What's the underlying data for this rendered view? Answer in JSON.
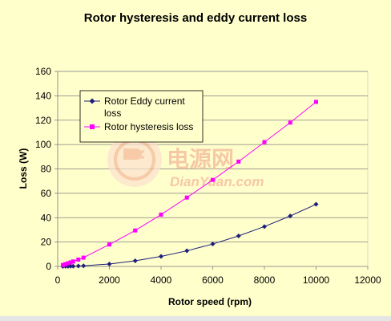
{
  "chart_data": {
    "type": "line",
    "title": "Rotor hysteresis and eddy current loss",
    "xlabel": "Rotor speed (rpm)",
    "ylabel": "Loss (W)",
    "xlim": [
      0,
      12000
    ],
    "ylim": [
      0,
      160
    ],
    "x_ticks": [
      "0",
      "2000",
      "4000",
      "6000",
      "8000",
      "10000",
      "12000"
    ],
    "y_ticks": [
      "0",
      "20",
      "40",
      "60",
      "80",
      "100",
      "120",
      "140",
      "160"
    ],
    "grid": "horizontal",
    "legend_position": "top-left",
    "series": [
      {
        "name": "Rotor Eddy current loss",
        "color": "#1f1f7a",
        "marker": "diamond",
        "x": [
          200,
          300,
          400,
          500,
          600,
          800,
          1000,
          2000,
          3000,
          4000,
          5000,
          6000,
          7000,
          8000,
          9000,
          10000
        ],
        "y": [
          0.02,
          0.05,
          0.08,
          0.13,
          0.18,
          0.33,
          0.5,
          2,
          4.6,
          8.2,
          12.8,
          18.4,
          25,
          32.7,
          41.4,
          51
        ]
      },
      {
        "name": "Rotor hysteresis loss",
        "color": "#ff00ff",
        "marker": "square",
        "x": [
          200,
          300,
          400,
          500,
          600,
          800,
          1000,
          2000,
          3000,
          4000,
          5000,
          6000,
          7000,
          8000,
          9000,
          10000
        ],
        "y": [
          1.2,
          1.9,
          2.6,
          3.3,
          4.1,
          5.6,
          7.2,
          18,
          29.5,
          42.5,
          56.5,
          71,
          86,
          102,
          118,
          135
        ]
      }
    ]
  },
  "watermark": {
    "logo_text": "电源网",
    "site_text": "DianYuan.com",
    "color": "#f4b69a"
  }
}
